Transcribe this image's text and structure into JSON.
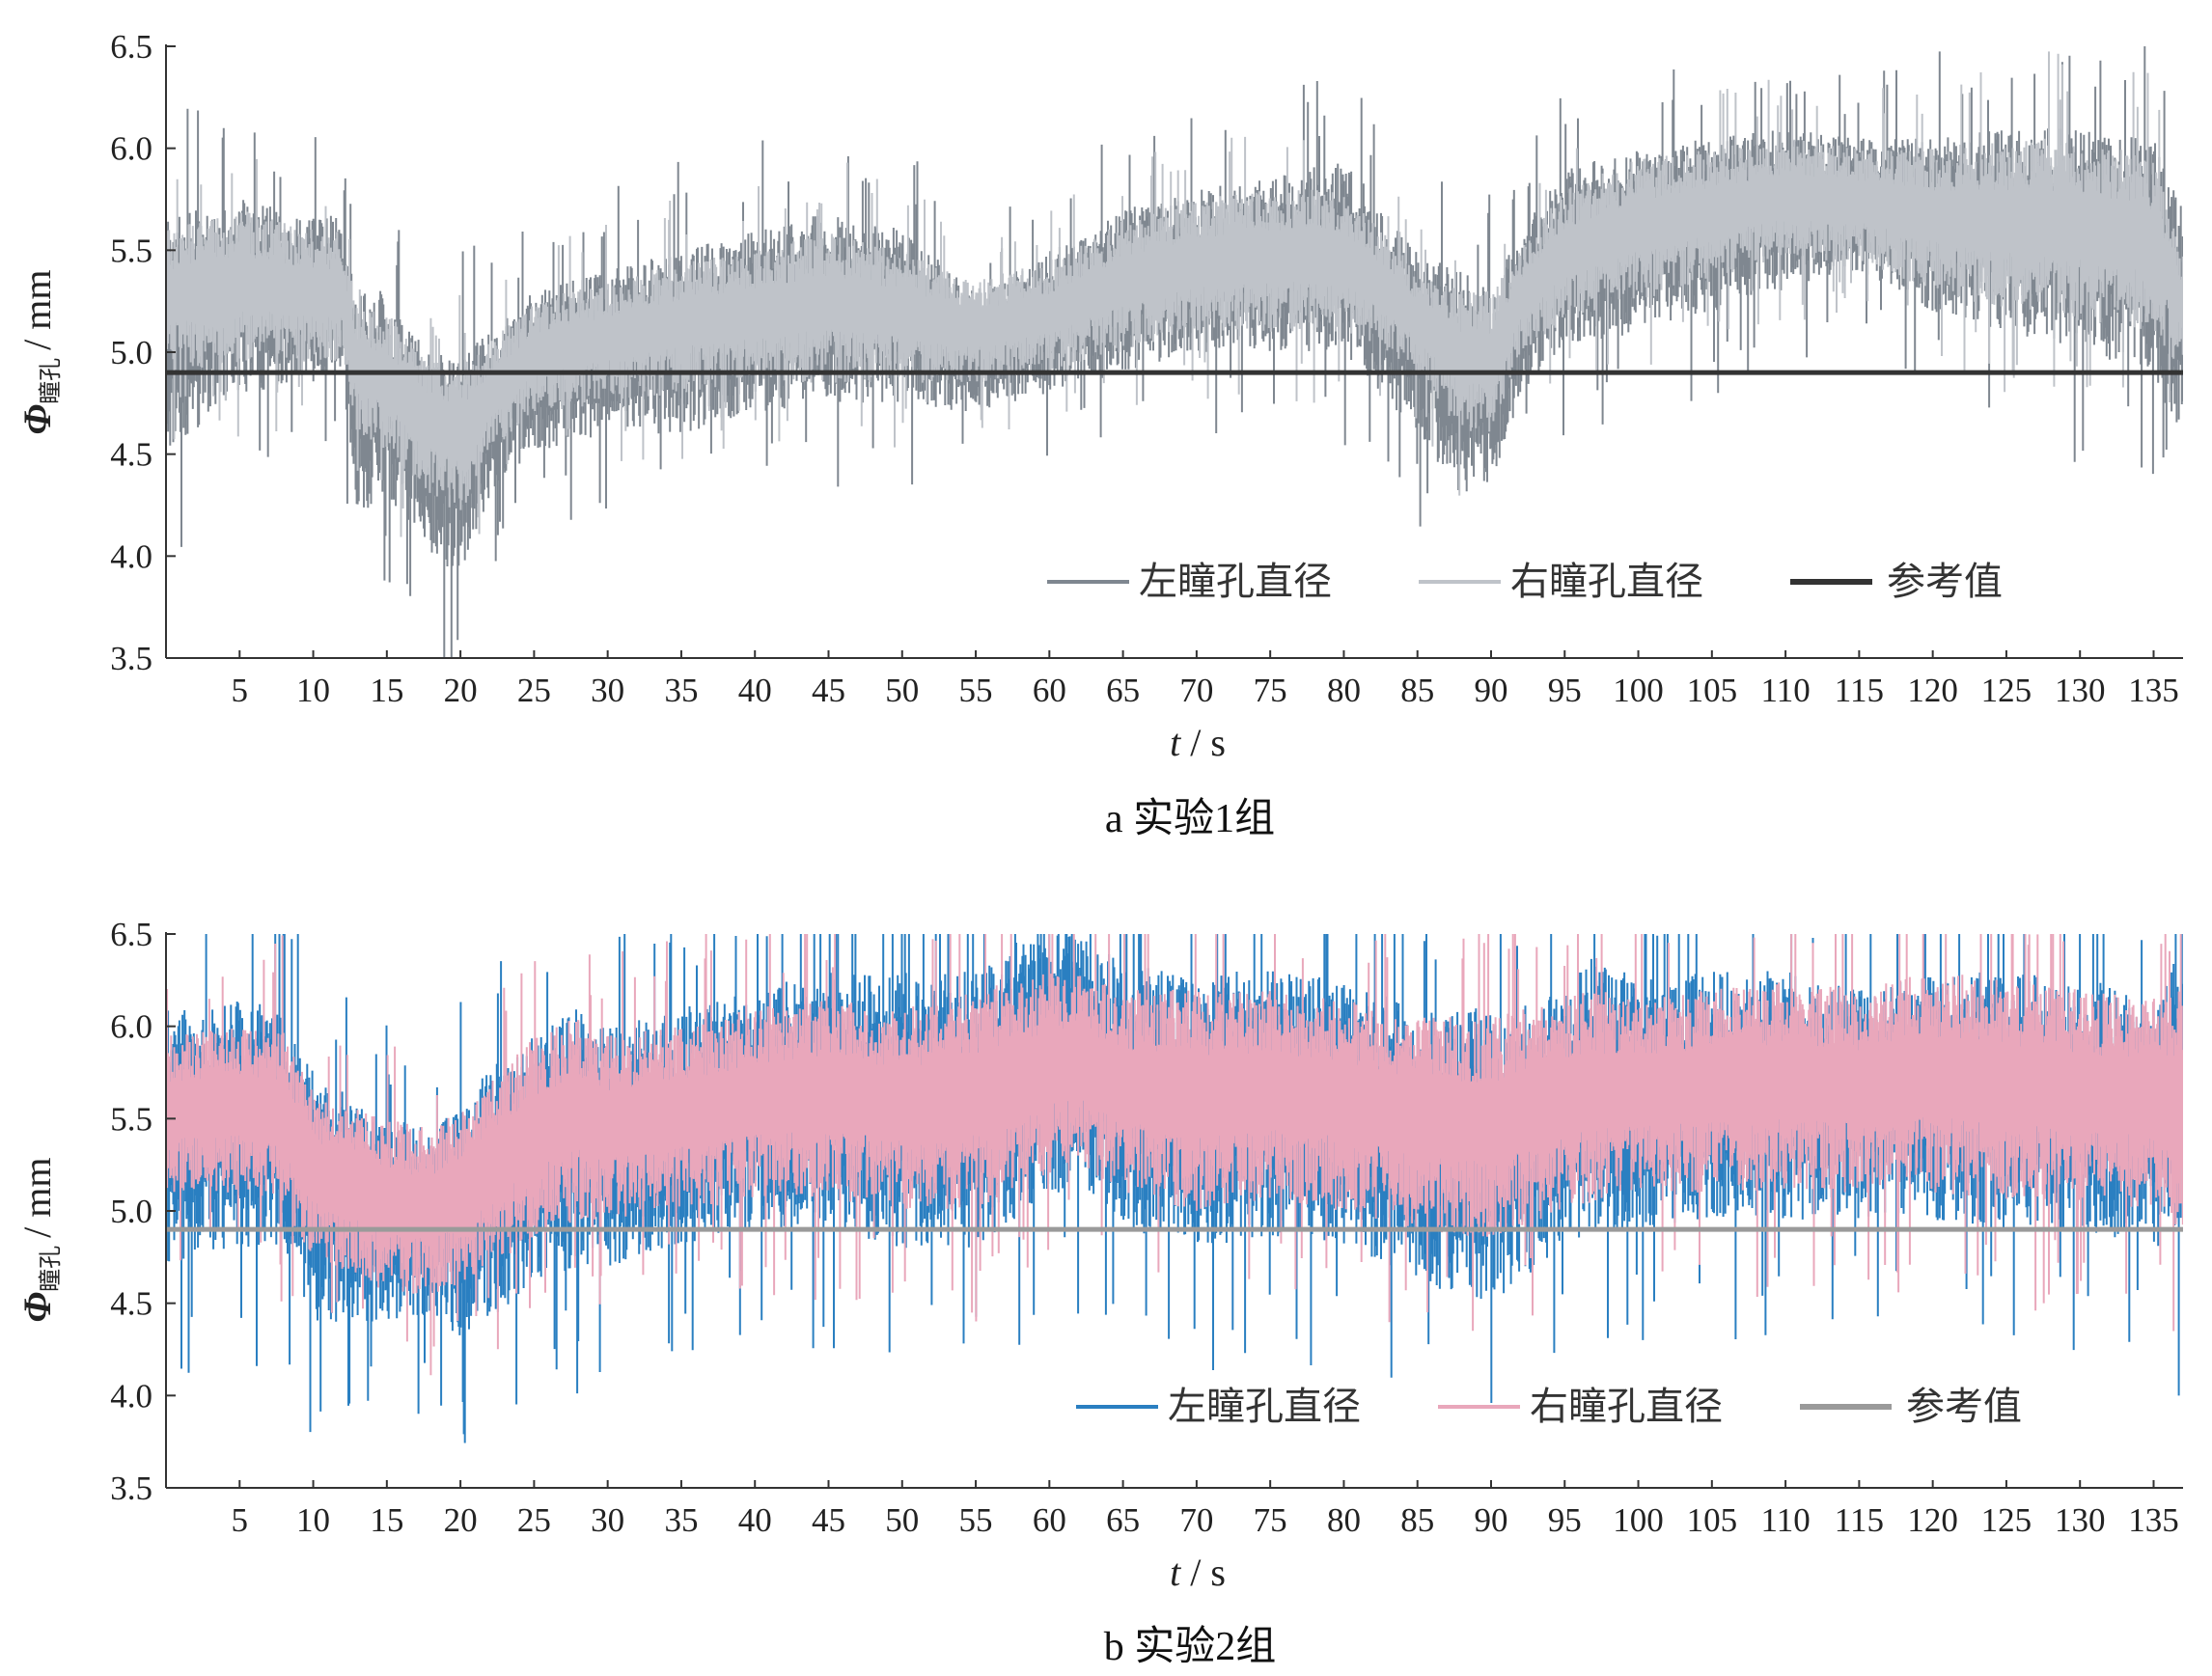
{
  "chart_data": [
    {
      "type": "line",
      "caption": "a  实验1组",
      "xlabel_italic": "t",
      "xlabel_unit": "/ s",
      "ylabel_symbol": "Φ",
      "ylabel_sub": "瞳孔",
      "ylabel_unit": "/ mm",
      "xlim": [
        0,
        137
      ],
      "ylim": [
        3.5,
        6.5
      ],
      "xticks": [
        5,
        10,
        15,
        20,
        25,
        30,
        35,
        40,
        45,
        50,
        55,
        60,
        65,
        70,
        75,
        80,
        85,
        90,
        95,
        100,
        105,
        110,
        115,
        120,
        125,
        130,
        135
      ],
      "yticks": [
        "3.5",
        "4.0",
        "4.5",
        "5.0",
        "5.5",
        "6.0",
        "6.5"
      ],
      "grid": false,
      "legend_position": "bottom-right",
      "legend": [
        "左瞳孔直径",
        "右瞳孔直径",
        "参考值"
      ],
      "colors": {
        "left": "#7f8790",
        "right": "#bfc3c9",
        "reference": "#333333"
      },
      "reference_value": 4.9,
      "series": [
        {
          "name": "左瞳孔直径",
          "band": "min-max envelope of the oscillating signal",
          "x": [
            0,
            5,
            10,
            12,
            13,
            15,
            18,
            20,
            22,
            25,
            30,
            35,
            40,
            45,
            50,
            55,
            60,
            65,
            70,
            75,
            80,
            85,
            88,
            90,
            92,
            95,
            100,
            105,
            110,
            115,
            120,
            125,
            130,
            135,
            137
          ],
          "upper": [
            5.7,
            5.75,
            5.7,
            5.65,
            5.3,
            5.3,
            5.0,
            5.0,
            5.1,
            5.3,
            5.4,
            5.5,
            5.6,
            5.7,
            5.6,
            5.3,
            5.5,
            5.7,
            5.8,
            5.85,
            5.95,
            5.5,
            5.4,
            5.3,
            5.6,
            5.9,
            6.0,
            6.05,
            6.1,
            6.05,
            6.05,
            6.1,
            6.1,
            6.05,
            5.7
          ],
          "lower": [
            4.5,
            4.8,
            4.85,
            4.85,
            4.2,
            4.3,
            4.0,
            3.9,
            4.3,
            4.5,
            4.6,
            4.6,
            4.7,
            4.75,
            4.75,
            4.7,
            4.8,
            4.9,
            5.0,
            5.0,
            5.0,
            4.6,
            4.3,
            4.3,
            4.8,
            5.0,
            5.1,
            5.2,
            5.3,
            5.4,
            5.2,
            5.1,
            5.0,
            4.9,
            4.5
          ]
        },
        {
          "name": "右瞳孔直径",
          "band": "min-max envelope of the oscillating signal",
          "x": [
            0,
            5,
            10,
            12,
            13,
            15,
            18,
            20,
            22,
            25,
            30,
            35,
            40,
            45,
            50,
            55,
            60,
            65,
            70,
            75,
            80,
            85,
            88,
            90,
            92,
            95,
            100,
            105,
            110,
            115,
            120,
            125,
            130,
            135,
            137
          ],
          "upper": [
            5.6,
            5.7,
            5.6,
            5.6,
            5.2,
            5.2,
            4.95,
            4.95,
            5.05,
            5.25,
            5.35,
            5.45,
            5.5,
            5.6,
            5.5,
            5.35,
            5.45,
            5.65,
            5.75,
            5.8,
            5.8,
            5.4,
            5.3,
            5.3,
            5.5,
            5.8,
            5.95,
            6.0,
            6.05,
            6.0,
            6.0,
            6.05,
            6.05,
            5.95,
            5.5
          ],
          "lower": [
            4.9,
            4.95,
            4.95,
            4.95,
            4.6,
            4.5,
            4.3,
            4.2,
            4.5,
            4.7,
            4.75,
            4.8,
            4.85,
            4.85,
            4.85,
            4.85,
            4.9,
            5.0,
            5.1,
            5.1,
            5.1,
            4.9,
            4.6,
            4.6,
            5.0,
            5.15,
            5.25,
            5.35,
            5.45,
            5.45,
            5.3,
            5.2,
            5.15,
            5.1,
            4.9
          ]
        },
        {
          "name": "参考值",
          "y": 4.9
        }
      ]
    },
    {
      "type": "line",
      "caption": "b  实验2组",
      "xlabel_italic": "t",
      "xlabel_unit": "/ s",
      "ylabel_symbol": "Φ",
      "ylabel_sub": "瞳孔",
      "ylabel_unit": "/ mm",
      "xlim": [
        0,
        137
      ],
      "ylim": [
        3.5,
        6.5
      ],
      "xticks": [
        5,
        10,
        15,
        20,
        25,
        30,
        35,
        40,
        45,
        50,
        55,
        60,
        65,
        70,
        75,
        80,
        85,
        90,
        95,
        100,
        105,
        110,
        115,
        120,
        125,
        130,
        135
      ],
      "yticks": [
        "3.5",
        "4.0",
        "4.5",
        "5.0",
        "5.5",
        "6.0",
        "6.5"
      ],
      "grid": false,
      "legend_position": "bottom-right",
      "legend": [
        "左瞳孔直径",
        "右瞳孔直径",
        "参考值"
      ],
      "colors": {
        "left": "#2a7fc1",
        "right": "#e9a7bb",
        "reference": "#9a9a9a"
      },
      "reference_value": 4.9,
      "series": [
        {
          "name": "左瞳孔直径",
          "band": "min-max envelope of the oscillating signal",
          "x": [
            0,
            5,
            8,
            10,
            15,
            18,
            20,
            25,
            28,
            30,
            35,
            40,
            45,
            50,
            55,
            60,
            62,
            65,
            70,
            75,
            80,
            85,
            90,
            95,
            97,
            100,
            105,
            110,
            115,
            120,
            125,
            130,
            135,
            137
          ],
          "upper": [
            6.1,
            6.15,
            6.1,
            5.75,
            5.5,
            5.45,
            5.6,
            6.0,
            6.1,
            6.0,
            6.1,
            6.2,
            6.3,
            6.3,
            6.3,
            6.6,
            6.5,
            6.35,
            6.3,
            6.3,
            6.25,
            6.1,
            6.1,
            6.2,
            6.4,
            6.25,
            6.3,
            6.3,
            6.2,
            6.3,
            6.3,
            6.25,
            6.2,
            6.5
          ],
          "lower": [
            4.7,
            4.8,
            4.8,
            4.4,
            4.4,
            4.4,
            4.3,
            4.6,
            4.7,
            4.7,
            4.8,
            4.9,
            4.9,
            4.8,
            4.8,
            5.1,
            5.1,
            4.9,
            4.8,
            4.85,
            4.8,
            4.6,
            4.5,
            4.8,
            4.9,
            4.9,
            4.95,
            4.95,
            4.95,
            4.95,
            4.9,
            4.9,
            4.8,
            4.8
          ]
        },
        {
          "name": "右瞳孔直径",
          "band": "min-max envelope of the oscillating signal",
          "x": [
            0,
            5,
            8,
            10,
            15,
            18,
            20,
            25,
            28,
            30,
            35,
            40,
            45,
            50,
            55,
            60,
            62,
            65,
            70,
            75,
            80,
            85,
            90,
            95,
            97,
            100,
            105,
            110,
            115,
            120,
            125,
            130,
            135,
            137
          ],
          "upper": [
            5.95,
            6.0,
            6.0,
            5.65,
            5.5,
            5.45,
            5.55,
            5.95,
            6.05,
            5.95,
            6.0,
            6.1,
            6.15,
            6.1,
            6.2,
            6.3,
            6.3,
            6.2,
            6.2,
            6.2,
            6.15,
            6.05,
            6.05,
            6.15,
            6.2,
            6.15,
            6.2,
            6.25,
            6.2,
            6.3,
            6.25,
            6.2,
            6.15,
            6.2
          ],
          "lower": [
            5.1,
            5.1,
            5.0,
            4.75,
            4.55,
            4.55,
            4.6,
            4.85,
            4.95,
            4.95,
            5.0,
            5.05,
            5.05,
            5.0,
            5.0,
            5.2,
            5.25,
            5.1,
            5.0,
            5.05,
            5.0,
            4.9,
            4.85,
            5.0,
            5.05,
            5.1,
            5.1,
            5.1,
            5.1,
            5.1,
            5.05,
            5.05,
            5.0,
            4.9
          ]
        },
        {
          "name": "参考值",
          "y": 4.9
        }
      ]
    }
  ]
}
